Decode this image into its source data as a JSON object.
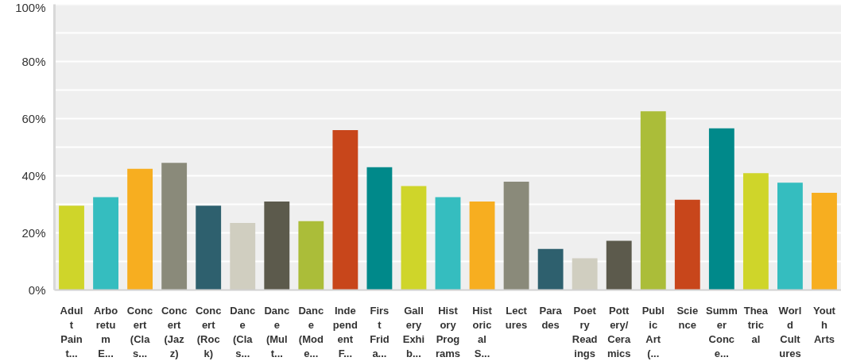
{
  "chart_data": {
    "type": "bar",
    "categories": [
      "Adul\nt\nPain\nt...",
      "Arbo\nretu\nm\nE...",
      "Conc\nert\n(Cla\ns...",
      "Conc\nert\n(Jaz\nz)",
      "Conc\nert\n(Roc\nk)",
      "Danc\ne\n(Cla\ns...",
      "Danc\ne\n(Mul\nt...",
      "Danc\ne\n(Mod\ne...",
      "Inde\npend\nent\nF...",
      "Firs\nt\nFrid\na...",
      "Gall\nery\nExhi\nb...",
      "Hist\nory\nProg\nrams",
      "Hist\noric\nal\nS...",
      "Lect\nures",
      "Para\ndes",
      "Poet\nry\nRead\nings",
      "Pott\nery/\nCera\nmics",
      "Publ\nic\nArt\n(...",
      "Scie\nnce",
      "Summ\ner\nConc\ne...",
      "Thea\ntric\nal",
      "Worl\nd\nCult\nures",
      "Yout\nh\nArts"
    ],
    "values": [
      29.5,
      32.5,
      42.4,
      44.5,
      29.5,
      23.5,
      31.0,
      24.1,
      56.0,
      43.0,
      36.4,
      32.5,
      31.0,
      37.9,
      14.4,
      11.1,
      17.2,
      62.6,
      31.6,
      56.6,
      40.9,
      37.6,
      34.0
    ],
    "colors": [
      "#cfd52a",
      "#35bdbf",
      "#f7ae20",
      "#8a8a7a",
      "#2e606e",
      "#d0cec0",
      "#5c5a4c",
      "#abbd39",
      "#c8461b",
      "#00898a",
      "#cfd52a",
      "#35bdbf",
      "#f7ae20",
      "#8a8a7a",
      "#2e606e",
      "#d0cec0",
      "#5c5a4c",
      "#abbd39",
      "#c8461b",
      "#00898a",
      "#cfd52a",
      "#35bdbf",
      "#f7ae20"
    ],
    "ylim": [
      0,
      100
    ],
    "yticks": [
      {
        "value": 0,
        "label": "0%"
      },
      {
        "value": 10,
        "label": null
      },
      {
        "value": 20,
        "label": "20%"
      },
      {
        "value": 30,
        "label": null
      },
      {
        "value": 40,
        "label": "40%"
      },
      {
        "value": 50,
        "label": null
      },
      {
        "value": 60,
        "label": "60%"
      },
      {
        "value": 70,
        "label": null
      },
      {
        "value": 80,
        "label": "80%"
      },
      {
        "value": 90,
        "label": null
      },
      {
        "value": 100,
        "label": "100%"
      }
    ],
    "grid": "y"
  }
}
